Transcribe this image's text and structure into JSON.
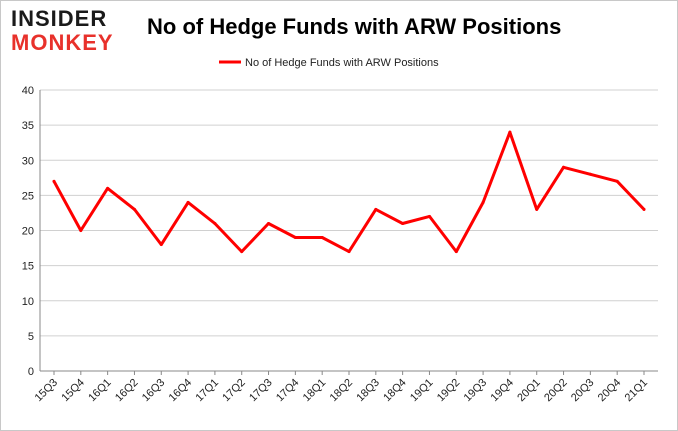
{
  "logo": {
    "line1": "INSIDER",
    "line2": "MONKEY"
  },
  "chart_data": {
    "type": "line",
    "title": "No of Hedge Funds with ARW Positions",
    "xlabel": "",
    "ylabel": "",
    "categories": [
      "15Q3",
      "15Q4",
      "16Q1",
      "16Q2",
      "16Q3",
      "16Q4",
      "17Q1",
      "17Q2",
      "17Q3",
      "17Q4",
      "18Q1",
      "18Q2",
      "18Q3",
      "18Q4",
      "19Q1",
      "19Q2",
      "19Q3",
      "19Q4",
      "20Q1",
      "20Q2",
      "20Q3",
      "20Q4",
      "21Q1"
    ],
    "series": [
      {
        "name": "No of Hedge Funds with ARW Positions",
        "values": [
          27,
          20,
          26,
          23,
          18,
          24,
          21,
          17,
          21,
          19,
          19,
          17,
          23,
          21,
          22,
          17,
          24,
          34,
          23,
          29,
          28,
          27,
          23
        ],
        "color": "#ff0000"
      }
    ],
    "ylim": [
      0,
      40
    ],
    "yticks": [
      0,
      5,
      10,
      15,
      20,
      25,
      30,
      35,
      40
    ],
    "grid": true,
    "legend_position": "top-center"
  },
  "colors": {
    "line": "#ff0000",
    "grid": "#d0d0d0",
    "axis": "#888888",
    "logo_dark": "#1a1a1a",
    "logo_red": "#e8312b"
  }
}
